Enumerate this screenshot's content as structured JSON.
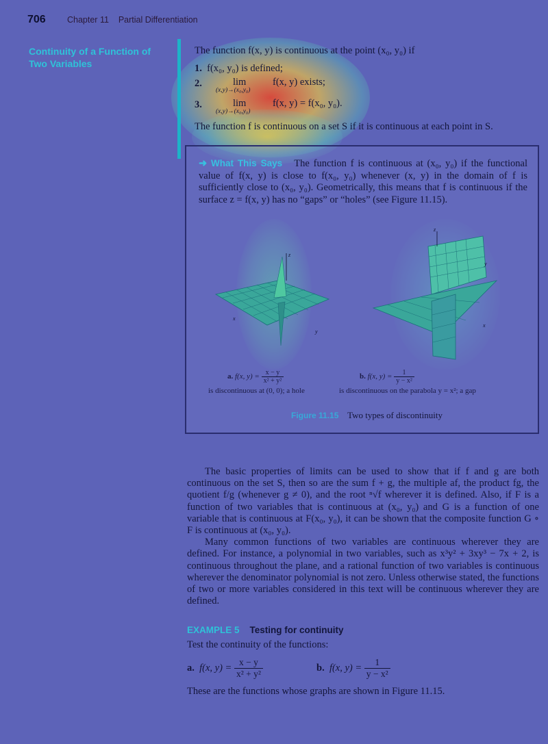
{
  "header": {
    "page_number": "706",
    "chapter": "Chapter 11",
    "chapter_title": "Partial Differentiation"
  },
  "sidebar": {
    "title": "Continuity of a Function of Two Variables"
  },
  "definition": {
    "intro": "The function f(x, y) is continuous at the point (x₀, y₀) if",
    "item1": "f(x₀, y₀) is defined;",
    "item2_lim": "lim",
    "item2_sub": "(x,y)→(x₀,y₀)",
    "item2_text": "f(x, y) exists;",
    "item3_lim": "lim",
    "item3_sub": "(x,y)→(x₀,y₀)",
    "item3_text": "f(x, y) = f(x₀, y₀).",
    "set_line": "The function f is continuous on a set S if it is continuous at each point in S."
  },
  "what_this_says": {
    "label": "What This Says",
    "text": "The function f is continuous at (x₀, y₀) if the functional value of f(x, y) is close to f(x₀, y₀) whenever (x, y) in the domain of f is sufficiently close to (x₀, y₀). Geometrically, this means that f is continuous if the surface z = f(x, y) has no “gaps” or “holes” (see Figure 11.15)."
  },
  "figure": {
    "a_label": "a.",
    "a_fn": "f(x, y) =",
    "a_num": "x − y",
    "a_den": "x² + y²",
    "a_desc": "is discontinuous at (0, 0); a hole",
    "b_label": "b.",
    "b_fn": "f(x, y) =",
    "b_num": "1",
    "b_den": "y − x²",
    "b_desc": "is discontinuous on the parabola y = x²; a gap",
    "caption_label": "Figure 11.15",
    "caption_text": "Two types of discontinuity",
    "axis_z": "z",
    "axis_x": "x",
    "axis_y": "y"
  },
  "body": {
    "p1": "The basic properties of limits can be used to show that if f and g are both continuous on the set S, then so are the sum f + g, the multiple af, the product fg, the quotient f/g (whenever g ≠ 0), and the root ⁿ√f wherever it is defined. Also, if F is a function of two variables that is continuous at (x₀, y₀) and G is a function of one variable that is continuous at F(x₀, y₀), it can be shown that the composite function G ∘ F is continuous at (x₀, y₀).",
    "p2": "Many common functions of two variables are continuous wherever they are defined. For instance, a polynomial in two variables, such as x³y² + 3xy³ − 7x + 2, is continuous throughout the plane, and a rational function of two variables is continuous wherever the denominator polynomial is not zero. Unless otherwise stated, the functions of two or more variables considered in this text will be continuous wherever they are defined."
  },
  "example": {
    "number": "EXAMPLE 5",
    "title": "Testing for continuity",
    "intro": "Test the continuity of the functions:",
    "a_label": "a.",
    "a_fn": "f(x, y) =",
    "a_num": "x − y",
    "a_den": "x² + y²",
    "b_label": "b.",
    "b_fn": "f(x, y) =",
    "b_num": "1",
    "b_den": "y − x²",
    "closing": "These are the functions whose graphs are shown in Figure 11.15."
  }
}
